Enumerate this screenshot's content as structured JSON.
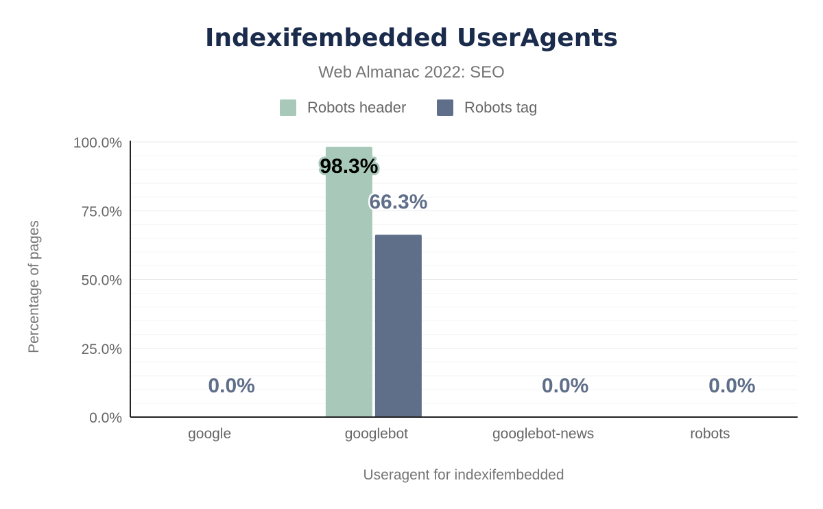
{
  "chart_data": {
    "type": "bar",
    "title": "Indexifembedded UserAgents",
    "subtitle": "Web Almanac 2022: SEO",
    "xlabel": "Useragent for indexifembedded",
    "ylabel": "Percentage of pages",
    "categories": [
      "google",
      "googlebot",
      "googlebot-news",
      "robots"
    ],
    "series": [
      {
        "name": "Robots header",
        "color": "#a8c9b9",
        "values": [
          0.0,
          98.3,
          0.0,
          0.0
        ],
        "labels": [
          "",
          "98.3%",
          "",
          ""
        ]
      },
      {
        "name": "Robots tag",
        "color": "#5f6f8a",
        "values": [
          0.0,
          66.3,
          0.0,
          0.0
        ],
        "labels": [
          "0.0%",
          "66.3%",
          "0.0%",
          "0.0%"
        ]
      }
    ],
    "ylim": [
      0,
      100
    ],
    "yticks": [
      "0.0%",
      "25.0%",
      "50.0%",
      "75.0%",
      "100.0%"
    ],
    "grid": true,
    "legend_position": "top-center"
  }
}
